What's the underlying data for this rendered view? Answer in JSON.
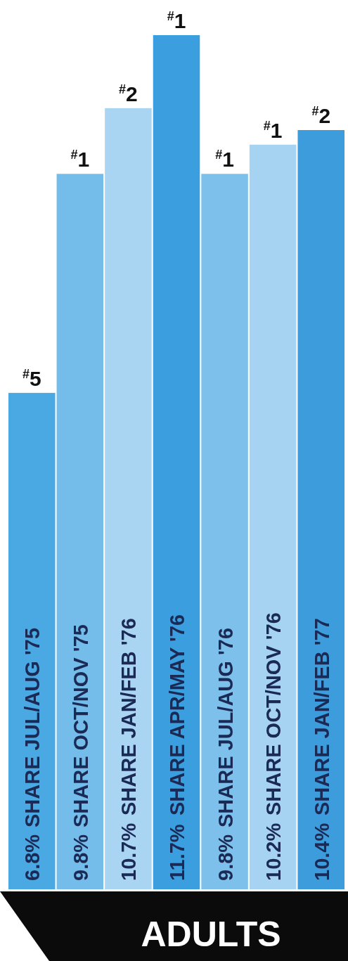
{
  "chart_data": {
    "type": "bar",
    "categories": [
      "SHARE JUL/AUG '75",
      "SHARE OCT/NOV '75",
      "SHARE JAN/FEB '76",
      "SHARE APR/MAY '76",
      "SHARE JUL/AUG '76",
      "SHARE OCT/NOV '76",
      "SHARE JAN/FEB '77"
    ],
    "values": [
      6.8,
      9.8,
      10.7,
      11.7,
      9.8,
      10.2,
      10.4
    ],
    "value_labels": [
      "6.8%",
      "9.8%",
      "10.7%",
      "11.7%",
      "9.8%",
      "10.2%",
      "10.4%"
    ],
    "colors": [
      "#4aa8e2",
      "#74bdea",
      "#a9d5f3",
      "#3b9fdf",
      "#7cc0eb",
      "#a6d3f2",
      "#3c9cdc"
    ],
    "annotations": [
      {
        "text": "$^{#}$5",
        "x": "SHARE JUL/AUG '75",
        "y": 6.8
      },
      {
        "text": "$^{#}$1",
        "x": "SHARE OCT/NOV '75",
        "y": 9.8
      },
      {
        "text": "$^{#}$2",
        "x": "SHARE JAN/FEB '76",
        "y": 10.7
      },
      {
        "text": "$^{#}$1",
        "x": "SHARE APR/MAY '76",
        "y": 11.7
      },
      {
        "text": "$^{#}$1",
        "x": "SHARE JUL/AUG '76",
        "y": 9.8
      },
      {
        "text": "$^{#}$1",
        "x": "SHARE OCT/NOV '76",
        "y": 10.2
      },
      {
        "text": "$^{#}$2",
        "x": "SHARE JAN/FEB '77",
        "y": 10.4
      },
      "ADULTS"
    ]
  }
}
